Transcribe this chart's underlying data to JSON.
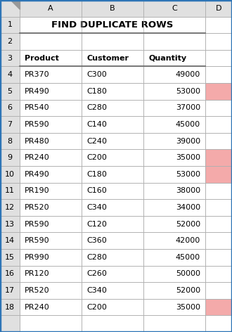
{
  "title": "FIND DUPLICATE ROWS",
  "headers": [
    "Product",
    "Customer",
    "Quantity"
  ],
  "col_labels": [
    "",
    "A",
    "B",
    "C",
    "D"
  ],
  "rows": [
    [
      "4",
      "PR370",
      "C300",
      "49000",
      false
    ],
    [
      "5",
      "PR490",
      "C180",
      "53000",
      true
    ],
    [
      "6",
      "PR540",
      "C280",
      "37000",
      false
    ],
    [
      "7",
      "PR590",
      "C140",
      "45000",
      false
    ],
    [
      "8",
      "PR480",
      "C240",
      "39000",
      false
    ],
    [
      "9",
      "PR240",
      "C200",
      "35000",
      true
    ],
    [
      "10",
      "PR490",
      "C180",
      "53000",
      true
    ],
    [
      "11",
      "PR190",
      "C160",
      "38000",
      false
    ],
    [
      "12",
      "PR520",
      "C340",
      "34000",
      false
    ],
    [
      "13",
      "PR590",
      "C120",
      "52000",
      false
    ],
    [
      "14",
      "PR590",
      "C360",
      "42000",
      false
    ],
    [
      "15",
      "PR990",
      "C280",
      "45000",
      false
    ],
    [
      "16",
      "PR120",
      "C260",
      "50000",
      false
    ],
    [
      "17",
      "PR520",
      "C340",
      "52000",
      false
    ],
    [
      "18",
      "PR240",
      "C200",
      "35000",
      true
    ]
  ],
  "bg_color": "#FFFFFF",
  "header_bg": "#E0E0E0",
  "grid_color": "#B0B0B0",
  "title_bg": "#FFFFFF",
  "duplicate_color": "#F4AAAA",
  "border_color": "#2E75B6",
  "font_size": 8.0,
  "title_font_size": 9.5
}
